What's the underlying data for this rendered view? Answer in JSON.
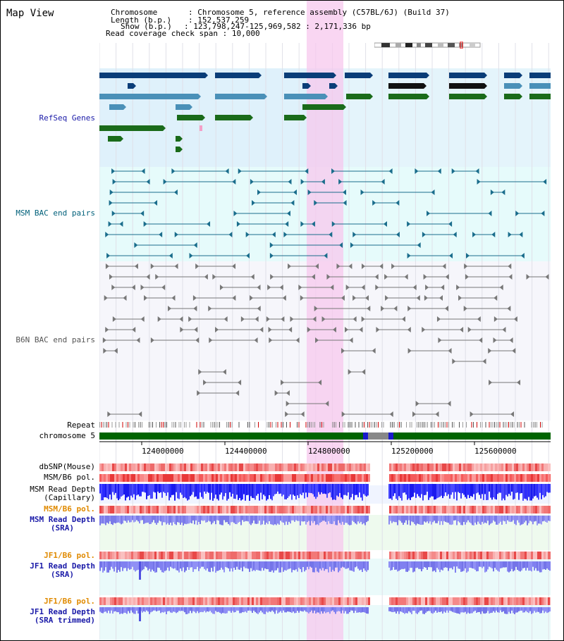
{
  "title": "Map View",
  "info": {
    "chromosome_key": "Chromosome",
    "chromosome_value": "Chromosome 5, reference assembly (C57BL/6J) (Build 37)",
    "length_key": "Length (b.p.)",
    "length_value": "152,537,259",
    "show_key": "Show (b.p.)",
    "show_value": "123,798,247-125,969,582 : 2,171,336 bp",
    "span_key": "Read coverage check span",
    "span_value": "10,000"
  },
  "tracks": {
    "refseq": "RefSeq Genes",
    "msm_bac": "MSM BAC end pairs",
    "b6n_bac": "B6N BAC end pairs",
    "repeat": "Repeat",
    "chromosome": "chromosome 5",
    "dbsnp": "dbSNP(Mouse)",
    "msm_b6_pol_1": "MSM/B6 pol.",
    "msm_read_depth_cap_1": "MSM Read Depth",
    "msm_read_depth_cap_2": "(Capillary)",
    "msm_b6_pol_2": "MSM/B6 pol.",
    "msm_read_depth_sra_1": "MSM Read Depth",
    "msm_read_depth_sra_2": "(SRA)",
    "jf1_b6_pol_1": "JF1/B6 pol.",
    "jf1_read_depth_sra_1": "JF1 Read Depth",
    "jf1_read_depth_sra_2": "(SRA)",
    "jf1_b6_pol_2": "JF1/B6 pol.",
    "jf1_read_depth_trim_1": "JF1 Read Depth",
    "jf1_read_depth_trim_2": "(SRA trimmed)"
  },
  "axis_ticks": [
    "124000000",
    "124400000",
    "124800000",
    "125200000",
    "125600000"
  ],
  "colors": {
    "gene_dark": "#0a3d78",
    "gene_light": "#4a90b8",
    "gene_green": "#1a6b1a",
    "msm_bac": "#1a6d8c",
    "b6n_bac": "#777777",
    "highlight": "#f7c8ee",
    "chrom_green": "#006400"
  }
}
